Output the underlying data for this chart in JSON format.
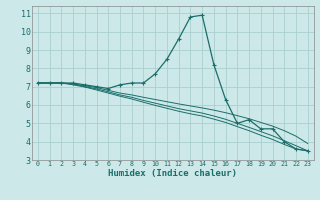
{
  "xlabel": "Humidex (Indice chaleur)",
  "bg_color": "#cce8e8",
  "grid_color": "#aacfcf",
  "line_color": "#1a6e6a",
  "xlim": [
    -0.5,
    23.5
  ],
  "ylim": [
    3,
    11.4
  ],
  "xticks": [
    0,
    1,
    2,
    3,
    4,
    5,
    6,
    7,
    8,
    9,
    10,
    11,
    12,
    13,
    14,
    15,
    16,
    17,
    18,
    19,
    20,
    21,
    22,
    23
  ],
  "yticks": [
    3,
    4,
    5,
    6,
    7,
    8,
    9,
    10,
    11
  ],
  "lines": [
    {
      "x": [
        0,
        1,
        2,
        3,
        4,
        5,
        6,
        7,
        8,
        9,
        10,
        11,
        12,
        13,
        14,
        15,
        16,
        17,
        18,
        19,
        20,
        21,
        22,
        23
      ],
      "y": [
        7.2,
        7.2,
        7.2,
        7.2,
        7.1,
        7.0,
        6.9,
        7.1,
        7.2,
        7.2,
        7.7,
        8.5,
        9.6,
        10.8,
        10.9,
        8.2,
        6.3,
        5.0,
        5.2,
        4.7,
        4.7,
        4.0,
        3.6,
        3.5
      ],
      "marker": true
    },
    {
      "x": [
        0,
        1,
        2,
        3,
        4,
        5,
        6,
        7,
        8,
        9,
        10,
        11,
        12,
        13,
        14,
        15,
        16,
        17,
        18,
        19,
        20,
        21,
        22,
        23
      ],
      "y": [
        7.2,
        7.2,
        7.2,
        7.15,
        7.05,
        6.95,
        6.8,
        6.65,
        6.55,
        6.42,
        6.3,
        6.18,
        6.06,
        5.95,
        5.84,
        5.72,
        5.58,
        5.42,
        5.25,
        5.05,
        4.85,
        4.6,
        4.3,
        3.9
      ],
      "marker": false
    },
    {
      "x": [
        0,
        1,
        2,
        3,
        4,
        5,
        6,
        7,
        8,
        9,
        10,
        11,
        12,
        13,
        14,
        15,
        16,
        17,
        18,
        19,
        20,
        21,
        22,
        23
      ],
      "y": [
        7.2,
        7.2,
        7.2,
        7.15,
        7.0,
        6.88,
        6.72,
        6.55,
        6.42,
        6.25,
        6.1,
        5.95,
        5.8,
        5.68,
        5.56,
        5.4,
        5.22,
        5.0,
        4.78,
        4.55,
        4.32,
        4.05,
        3.78,
        3.5
      ],
      "marker": false
    },
    {
      "x": [
        0,
        1,
        2,
        3,
        4,
        5,
        6,
        7,
        8,
        9,
        10,
        11,
        12,
        13,
        14,
        15,
        16,
        17,
        18,
        19,
        20,
        21,
        22,
        23
      ],
      "y": [
        7.2,
        7.2,
        7.2,
        7.1,
        6.98,
        6.82,
        6.65,
        6.48,
        6.33,
        6.15,
        5.98,
        5.82,
        5.66,
        5.52,
        5.4,
        5.23,
        5.05,
        4.82,
        4.6,
        4.35,
        4.12,
        3.85,
        3.6,
        3.5
      ],
      "marker": false
    }
  ]
}
